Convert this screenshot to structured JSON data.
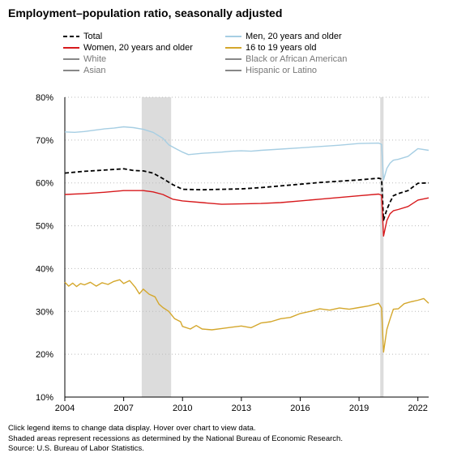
{
  "title": "Employment–population ratio, seasonally adjusted",
  "legend": [
    {
      "label": "Total",
      "color": "#000000",
      "dash": true,
      "active": true
    },
    {
      "label": "Men, 20 years and older",
      "color": "#a6cee3",
      "dash": false,
      "active": true
    },
    {
      "label": "Women, 20 years and older",
      "color": "#d7191c",
      "dash": false,
      "active": true
    },
    {
      "label": "16 to 19 years old",
      "color": "#d4a72c",
      "dash": false,
      "active": true
    },
    {
      "label": "White",
      "color": "#888888",
      "dash": false,
      "active": false
    },
    {
      "label": "Black or African American",
      "color": "#888888",
      "dash": false,
      "active": false
    },
    {
      "label": "Asian",
      "color": "#888888",
      "dash": false,
      "active": false
    },
    {
      "label": "Hispanic or Latino",
      "color": "#888888",
      "dash": false,
      "active": false
    }
  ],
  "notes": [
    "Click legend items to change data display. Hover over chart to view data.",
    "Shaded areas represent recessions as determined by the National Bureau of Economic Research.",
    "Source: U.S. Bureau of Labor Statistics."
  ],
  "chart_data": {
    "type": "line",
    "title": "Employment–population ratio, seasonally adjusted",
    "x_ticks": [
      2004,
      2007,
      2010,
      2013,
      2016,
      2019,
      2022
    ],
    "x_tick_labels": [
      "2004",
      "2007",
      "2010",
      "2013",
      "2016",
      "2019",
      "2022"
    ],
    "y_ticks": [
      10,
      20,
      30,
      40,
      50,
      60,
      70,
      80
    ],
    "y_tick_labels": [
      "10%",
      "20%",
      "30%",
      "40%",
      "50%",
      "60%",
      "70%",
      "80%"
    ],
    "xlim": [
      2004.0,
      2022.55
    ],
    "ylim": [
      10,
      80
    ],
    "grid": "horizontal-dotted",
    "recessions": [
      [
        2007.92,
        2009.42
      ],
      [
        2020.08,
        2020.25
      ]
    ],
    "series": [
      {
        "name": "Total",
        "color": "#000000",
        "dash": true,
        "points": [
          [
            2004.0,
            62.3
          ],
          [
            2005.0,
            62.7
          ],
          [
            2006.0,
            63.0
          ],
          [
            2007.0,
            63.3
          ],
          [
            2007.5,
            62.9
          ],
          [
            2008.0,
            62.8
          ],
          [
            2008.5,
            62.3
          ],
          [
            2009.0,
            61.0
          ],
          [
            2009.5,
            59.6
          ],
          [
            2010.0,
            58.5
          ],
          [
            2011.0,
            58.4
          ],
          [
            2012.0,
            58.5
          ],
          [
            2013.0,
            58.6
          ],
          [
            2014.0,
            58.9
          ],
          [
            2015.0,
            59.3
          ],
          [
            2016.0,
            59.7
          ],
          [
            2017.0,
            60.1
          ],
          [
            2018.0,
            60.4
          ],
          [
            2019.0,
            60.7
          ],
          [
            2020.0,
            61.1
          ],
          [
            2020.15,
            60.9
          ],
          [
            2020.25,
            51.3
          ],
          [
            2020.42,
            53.8
          ],
          [
            2020.58,
            55.5
          ],
          [
            2020.75,
            57.0
          ],
          [
            2021.0,
            57.5
          ],
          [
            2021.5,
            58.2
          ],
          [
            2022.0,
            59.9
          ],
          [
            2022.55,
            60.0
          ]
        ]
      },
      {
        "name": "Men, 20 years and older",
        "color": "#a6cee3",
        "dash": false,
        "points": [
          [
            2004.0,
            71.9
          ],
          [
            2004.5,
            71.8
          ],
          [
            2005.0,
            72.0
          ],
          [
            2005.5,
            72.3
          ],
          [
            2006.0,
            72.6
          ],
          [
            2006.5,
            72.8
          ],
          [
            2007.0,
            73.1
          ],
          [
            2007.5,
            72.9
          ],
          [
            2008.0,
            72.5
          ],
          [
            2008.5,
            71.8
          ],
          [
            2009.0,
            70.4
          ],
          [
            2009.3,
            68.9
          ],
          [
            2009.7,
            67.9
          ],
          [
            2010.0,
            67.2
          ],
          [
            2010.3,
            66.6
          ],
          [
            2011.0,
            66.9
          ],
          [
            2012.0,
            67.2
          ],
          [
            2012.5,
            67.4
          ],
          [
            2013.0,
            67.5
          ],
          [
            2013.5,
            67.4
          ],
          [
            2014.0,
            67.6
          ],
          [
            2015.0,
            67.9
          ],
          [
            2016.0,
            68.2
          ],
          [
            2017.0,
            68.5
          ],
          [
            2018.0,
            68.8
          ],
          [
            2019.0,
            69.2
          ],
          [
            2020.0,
            69.3
          ],
          [
            2020.15,
            69.0
          ],
          [
            2020.25,
            60.7
          ],
          [
            2020.42,
            63.4
          ],
          [
            2020.58,
            64.6
          ],
          [
            2020.75,
            65.3
          ],
          [
            2021.0,
            65.5
          ],
          [
            2021.5,
            66.2
          ],
          [
            2022.0,
            68.0
          ],
          [
            2022.55,
            67.6
          ]
        ]
      },
      {
        "name": "Women, 20 years and older",
        "color": "#d7191c",
        "dash": false,
        "points": [
          [
            2004.0,
            57.3
          ],
          [
            2005.0,
            57.5
          ],
          [
            2006.0,
            57.8
          ],
          [
            2007.0,
            58.2
          ],
          [
            2008.0,
            58.2
          ],
          [
            2008.5,
            57.9
          ],
          [
            2009.0,
            57.3
          ],
          [
            2009.5,
            56.2
          ],
          [
            2010.0,
            55.8
          ],
          [
            2011.0,
            55.4
          ],
          [
            2012.0,
            55.0
          ],
          [
            2013.0,
            55.1
          ],
          [
            2014.0,
            55.2
          ],
          [
            2015.0,
            55.4
          ],
          [
            2016.0,
            55.8
          ],
          [
            2017.0,
            56.2
          ],
          [
            2018.0,
            56.6
          ],
          [
            2019.0,
            57.0
          ],
          [
            2020.0,
            57.4
          ],
          [
            2020.15,
            57.1
          ],
          [
            2020.25,
            47.6
          ],
          [
            2020.42,
            51.2
          ],
          [
            2020.58,
            52.8
          ],
          [
            2020.75,
            53.5
          ],
          [
            2021.0,
            53.8
          ],
          [
            2021.5,
            54.5
          ],
          [
            2022.0,
            56.0
          ],
          [
            2022.55,
            56.5
          ]
        ]
      },
      {
        "name": "16 to 19 years old",
        "color": "#d4a72c",
        "dash": false,
        "points": [
          [
            2004.0,
            36.8
          ],
          [
            2004.2,
            35.9
          ],
          [
            2004.4,
            36.6
          ],
          [
            2004.6,
            35.8
          ],
          [
            2004.8,
            36.5
          ],
          [
            2005.0,
            36.2
          ],
          [
            2005.3,
            36.8
          ],
          [
            2005.6,
            35.9
          ],
          [
            2005.9,
            36.7
          ],
          [
            2006.2,
            36.3
          ],
          [
            2006.5,
            37.0
          ],
          [
            2006.8,
            37.4
          ],
          [
            2007.0,
            36.5
          ],
          [
            2007.3,
            37.2
          ],
          [
            2007.6,
            35.6
          ],
          [
            2007.8,
            34.1
          ],
          [
            2008.0,
            35.2
          ],
          [
            2008.3,
            34.0
          ],
          [
            2008.6,
            33.4
          ],
          [
            2008.8,
            31.7
          ],
          [
            2009.0,
            30.9
          ],
          [
            2009.3,
            30.0
          ],
          [
            2009.6,
            28.3
          ],
          [
            2009.9,
            27.6
          ],
          [
            2010.0,
            26.5
          ],
          [
            2010.4,
            25.9
          ],
          [
            2010.7,
            26.7
          ],
          [
            2011.0,
            25.9
          ],
          [
            2011.5,
            25.7
          ],
          [
            2012.0,
            26.0
          ],
          [
            2012.5,
            26.3
          ],
          [
            2013.0,
            26.6
          ],
          [
            2013.5,
            26.2
          ],
          [
            2014.0,
            27.3
          ],
          [
            2014.5,
            27.6
          ],
          [
            2015.0,
            28.3
          ],
          [
            2015.5,
            28.6
          ],
          [
            2016.0,
            29.5
          ],
          [
            2016.5,
            30.0
          ],
          [
            2017.0,
            30.6
          ],
          [
            2017.5,
            30.3
          ],
          [
            2018.0,
            30.8
          ],
          [
            2018.5,
            30.5
          ],
          [
            2019.0,
            30.9
          ],
          [
            2019.5,
            31.3
          ],
          [
            2020.0,
            31.9
          ],
          [
            2020.15,
            30.8
          ],
          [
            2020.25,
            20.5
          ],
          [
            2020.42,
            25.8
          ],
          [
            2020.58,
            28.2
          ],
          [
            2020.75,
            30.5
          ],
          [
            2021.0,
            30.6
          ],
          [
            2021.3,
            31.8
          ],
          [
            2021.6,
            32.2
          ],
          [
            2022.0,
            32.6
          ],
          [
            2022.3,
            33.0
          ],
          [
            2022.55,
            31.9
          ]
        ]
      }
    ]
  }
}
